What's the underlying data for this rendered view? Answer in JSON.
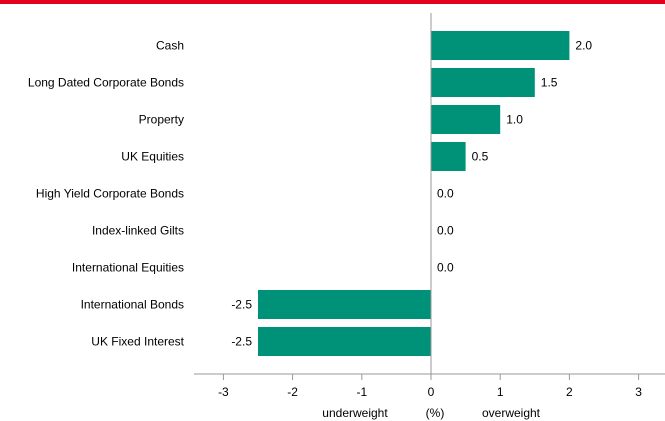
{
  "colors": {
    "top_rule": "#e3001b",
    "bar": "#009179",
    "axis": "#999999"
  },
  "chart_data": {
    "type": "bar",
    "orientation": "horizontal",
    "categories": [
      "Cash",
      "Long Dated Corporate Bonds",
      "Property",
      "UK Equities",
      "High Yield Corporate Bonds",
      "Index-linked Gilts",
      "International Equities",
      "International Bonds",
      "UK Fixed Interest"
    ],
    "values": [
      2.0,
      1.5,
      1.0,
      0.5,
      0.0,
      0.0,
      0.0,
      -2.5,
      -2.5
    ],
    "value_labels": [
      "2.0",
      "1.5",
      "1.0",
      "0.5",
      "0.0",
      "0.0",
      "0.0",
      "-2.5",
      "-2.5"
    ],
    "xlim": [
      -3,
      3
    ],
    "xticks": [
      -3,
      -2,
      -1,
      0,
      1,
      2,
      3
    ],
    "xtick_labels": [
      "-3",
      "-2",
      "-1",
      "0",
      "1",
      "2",
      "3"
    ],
    "axis_words": {
      "left": "underweight",
      "unit": "(%)",
      "right": "overweight"
    },
    "grid": false,
    "legend": "none"
  }
}
